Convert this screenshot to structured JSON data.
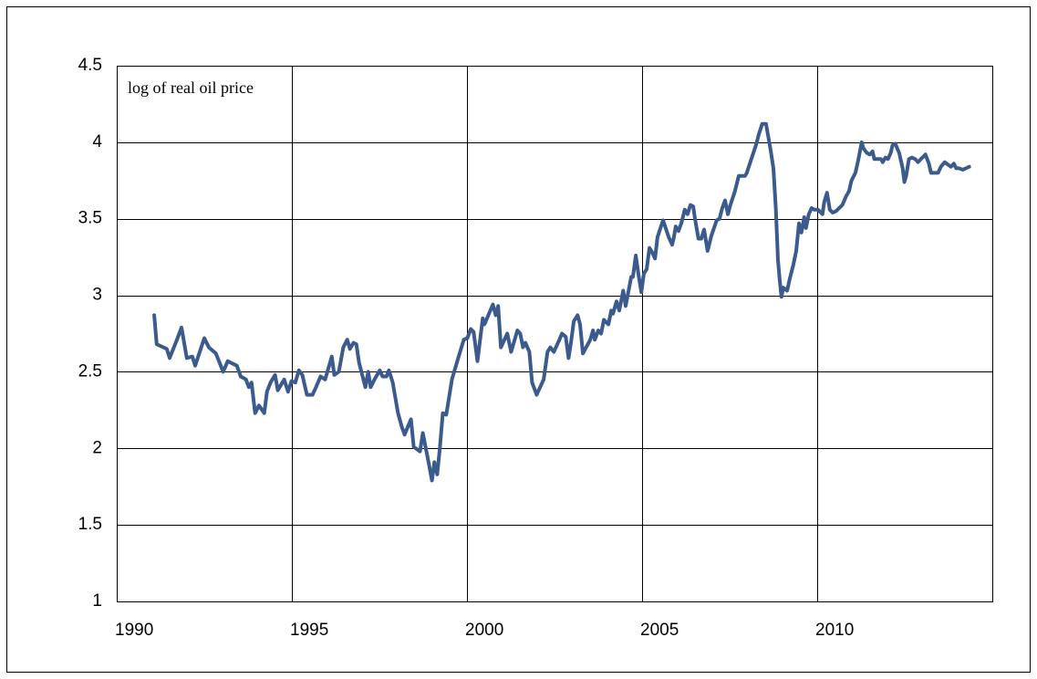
{
  "chart_data": {
    "type": "line",
    "annotation": "log of real oil price",
    "color": "#3b5b8e",
    "grid": true,
    "xlim": [
      1990,
      2015
    ],
    "xticks": [
      1990,
      1995,
      2000,
      2005,
      2010
    ],
    "ylim": [
      1,
      4.5
    ],
    "yticks": [
      1,
      1.5,
      2,
      2.5,
      3,
      3.5,
      4,
      4.5
    ],
    "x": [
      1991.07,
      1991.14,
      1991.43,
      1991.51,
      1991.72,
      1991.85,
      1992.0,
      1992.16,
      1992.24,
      1992.5,
      1992.63,
      1992.83,
      1993.04,
      1993.17,
      1993.43,
      1993.54,
      1993.69,
      1993.77,
      1993.85,
      1993.95,
      1994.06,
      1994.21,
      1994.29,
      1994.39,
      1994.52,
      1994.6,
      1994.78,
      1994.89,
      1994.99,
      1995.1,
      1995.2,
      1995.3,
      1995.43,
      1995.59,
      1995.69,
      1995.82,
      1995.95,
      1996.14,
      1996.21,
      1996.34,
      1996.47,
      1996.58,
      1996.66,
      1996.76,
      1996.84,
      1996.92,
      1997.1,
      1997.18,
      1997.25,
      1997.36,
      1997.51,
      1997.59,
      1997.7,
      1997.77,
      1997.88,
      1998.03,
      1998.14,
      1998.22,
      1998.4,
      1998.48,
      1998.66,
      1998.74,
      1998.92,
      1999.0,
      1999.07,
      1999.15,
      1999.23,
      1999.31,
      1999.41,
      1999.57,
      1999.75,
      1999.91,
      2000.01,
      2000.11,
      2000.19,
      2000.3,
      2000.45,
      2000.5,
      2000.74,
      2000.82,
      2000.89,
      2000.97,
      2001.15,
      2001.26,
      2001.44,
      2001.52,
      2001.6,
      2001.67,
      2001.78,
      2001.86,
      2001.99,
      2002.19,
      2002.3,
      2002.38,
      2002.48,
      2002.64,
      2002.71,
      2002.82,
      2002.9,
      2002.97,
      2003.05,
      2003.16,
      2003.23,
      2003.31,
      2003.52,
      2003.6,
      2003.65,
      2003.75,
      2003.83,
      2003.91,
      2004.04,
      2004.12,
      2004.17,
      2004.27,
      2004.35,
      2004.46,
      2004.53,
      2004.69,
      2004.74,
      2004.82,
      2004.9,
      2004.98,
      2005.05,
      2005.13,
      2005.21,
      2005.29,
      2005.37,
      2005.44,
      2005.6,
      2005.76,
      2005.86,
      2005.91,
      2005.96,
      2006.04,
      2006.12,
      2006.22,
      2006.3,
      2006.38,
      2006.46,
      2006.51,
      2006.61,
      2006.69,
      2006.77,
      2006.87,
      2006.98,
      2007.13,
      2007.21,
      2007.29,
      2007.37,
      2007.45,
      2007.52,
      2007.65,
      2007.76,
      2007.94,
      2007.99,
      2008.12,
      2008.25,
      2008.33,
      2008.43,
      2008.54,
      2008.67,
      2008.75,
      2008.82,
      2008.88,
      2008.93,
      2008.98,
      2009.03,
      2009.14,
      2009.22,
      2009.32,
      2009.4,
      2009.48,
      2009.55,
      2009.63,
      2009.68,
      2009.76,
      2009.84,
      2009.92,
      2010.02,
      2010.15,
      2010.2,
      2010.28,
      2010.36,
      2010.44,
      2010.54,
      2010.72,
      2010.83,
      2010.91,
      2010.98,
      2011.09,
      2011.17,
      2011.27,
      2011.32,
      2011.42,
      2011.5,
      2011.58,
      2011.63,
      2011.82,
      2011.87,
      2011.95,
      2012.02,
      2012.1,
      2012.15,
      2012.23,
      2012.34,
      2012.44,
      2012.49,
      2012.54,
      2012.62,
      2012.7,
      2012.8,
      2012.88,
      2012.96,
      2013.09,
      2013.19,
      2013.25,
      2013.45,
      2013.53,
      2013.64,
      2013.82,
      2013.9,
      2013.97,
      2014.05,
      2014.16,
      2014.34
    ],
    "values": [
      2.87,
      2.68,
      2.65,
      2.59,
      2.71,
      2.79,
      2.59,
      2.6,
      2.54,
      2.72,
      2.66,
      2.62,
      2.5,
      2.57,
      2.54,
      2.47,
      2.45,
      2.4,
      2.43,
      2.23,
      2.28,
      2.23,
      2.37,
      2.43,
      2.48,
      2.38,
      2.45,
      2.37,
      2.44,
      2.43,
      2.51,
      2.48,
      2.35,
      2.35,
      2.4,
      2.47,
      2.45,
      2.6,
      2.48,
      2.5,
      2.66,
      2.71,
      2.65,
      2.69,
      2.68,
      2.56,
      2.4,
      2.5,
      2.4,
      2.45,
      2.51,
      2.47,
      2.47,
      2.51,
      2.43,
      2.23,
      2.14,
      2.09,
      2.19,
      2.01,
      1.98,
      2.1,
      1.89,
      1.79,
      1.91,
      1.83,
      2.01,
      2.23,
      2.22,
      2.45,
      2.59,
      2.71,
      2.72,
      2.78,
      2.76,
      2.57,
      2.85,
      2.81,
      2.94,
      2.87,
      2.93,
      2.66,
      2.75,
      2.63,
      2.77,
      2.75,
      2.66,
      2.69,
      2.63,
      2.43,
      2.35,
      2.45,
      2.63,
      2.66,
      2.63,
      2.71,
      2.75,
      2.73,
      2.59,
      2.69,
      2.83,
      2.87,
      2.81,
      2.62,
      2.71,
      2.77,
      2.71,
      2.77,
      2.75,
      2.84,
      2.81,
      2.9,
      2.88,
      2.96,
      2.9,
      3.03,
      2.93,
      3.12,
      3.12,
      3.26,
      3.13,
      3.02,
      3.14,
      3.17,
      3.31,
      3.28,
      3.24,
      3.38,
      3.49,
      3.38,
      3.33,
      3.38,
      3.45,
      3.42,
      3.47,
      3.56,
      3.53,
      3.59,
      3.58,
      3.5,
      3.37,
      3.37,
      3.43,
      3.29,
      3.39,
      3.49,
      3.5,
      3.57,
      3.62,
      3.53,
      3.59,
      3.68,
      3.78,
      3.78,
      3.8,
      3.89,
      3.98,
      4.05,
      4.12,
      4.12,
      3.95,
      3.83,
      3.56,
      3.23,
      3.1,
      2.99,
      3.05,
      3.03,
      3.11,
      3.2,
      3.29,
      3.47,
      3.41,
      3.51,
      3.44,
      3.53,
      3.57,
      3.56,
      3.56,
      3.53,
      3.61,
      3.67,
      3.56,
      3.54,
      3.55,
      3.59,
      3.65,
      3.68,
      3.75,
      3.8,
      3.88,
      4.0,
      3.96,
      3.93,
      3.92,
      3.94,
      3.89,
      3.89,
      3.87,
      3.9,
      3.89,
      3.93,
      3.98,
      3.99,
      3.93,
      3.83,
      3.74,
      3.78,
      3.89,
      3.9,
      3.89,
      3.87,
      3.89,
      3.92,
      3.86,
      3.8,
      3.8,
      3.84,
      3.87,
      3.84,
      3.86,
      3.83,
      3.83,
      3.82,
      3.84
    ]
  }
}
